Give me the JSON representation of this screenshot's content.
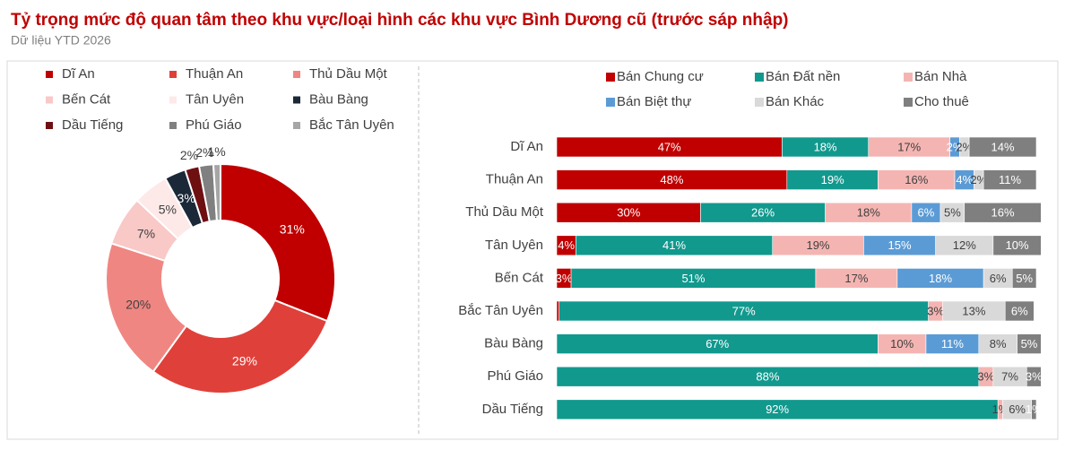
{
  "title": "Tỷ trọng mức độ quan tâm theo khu vực/loại hình các khu vực Bình Dương cũ (trước sáp nhập)",
  "subtitle": "Dữ liệu YTD 2026",
  "chart_data": [
    {
      "type": "donut",
      "categories": [
        "Dĩ An",
        "Thuận An",
        "Thủ Dầu Một",
        "Bến Cát",
        "Tân Uyên",
        "Bàu Bàng",
        "Dầu Tiếng",
        "Phú Giáo",
        "Bắc Tân Uyên"
      ],
      "values": [
        31,
        29,
        20,
        7,
        5,
        3,
        2,
        2,
        1
      ],
      "value_labels": [
        "31%",
        "29%",
        "20%",
        "7%",
        "5%",
        "3%",
        "2%",
        "2%",
        "1%"
      ],
      "colors": [
        "#c00000",
        "#e0403a",
        "#f08682",
        "#f8c9c7",
        "#fde9e8",
        "#1b2838",
        "#6e0f12",
        "#808080",
        "#a6a6a6"
      ]
    },
    {
      "type": "bar",
      "orientation": "horizontal",
      "stacked": true,
      "categories": [
        "Dĩ An",
        "Thuận An",
        "Thủ Dầu Một",
        "Tân Uyên",
        "Bến Cát",
        "Bắc Tân Uyên",
        "Bàu Bàng",
        "Phú Giáo",
        "Dầu Tiếng"
      ],
      "xlim": [
        0,
        100
      ],
      "series": [
        {
          "name": "Bán Chung cư",
          "color": "#c00000",
          "values": [
            47,
            48,
            30,
            4,
            3,
            0.5,
            0,
            0,
            0
          ],
          "value_labels": [
            "47%",
            "48%",
            "30%",
            "4%",
            "3%",
            null,
            null,
            null,
            null
          ]
        },
        {
          "name": "Bán Đất nền",
          "color": "#12998e",
          "values": [
            18,
            19,
            26,
            41,
            51,
            77,
            67,
            88,
            92
          ],
          "value_labels": [
            "18%",
            "19%",
            "26%",
            "41%",
            "51%",
            "77%",
            "67%",
            "88%",
            "92%"
          ]
        },
        {
          "name": "Bán Nhà",
          "color": "#f4b5b2",
          "values": [
            17,
            16,
            18,
            19,
            17,
            3,
            10,
            3,
            1
          ],
          "value_labels": [
            "17%",
            "16%",
            "18%",
            "19%",
            "17%",
            "3%",
            "10%",
            "3%",
            "1%"
          ]
        },
        {
          "name": "Bán Biệt thự",
          "color": "#5b9bd5",
          "values": [
            2,
            4,
            6,
            15,
            18,
            0,
            11,
            0,
            0
          ],
          "value_labels": [
            "2%",
            "4%",
            "6%",
            "15%",
            "18%",
            null,
            "11%",
            null,
            null
          ]
        },
        {
          "name": "Bán Khác",
          "color": "#d9d9d9",
          "values": [
            2,
            2,
            5,
            12,
            6,
            13,
            8,
            7,
            6
          ],
          "value_labels": [
            "2%",
            "2%",
            "5%",
            "12%",
            "6%",
            "13%",
            "8%",
            "7%",
            "6%"
          ]
        },
        {
          "name": "Cho thuê",
          "color": "#7f7f7f",
          "values": [
            14,
            11,
            16,
            10,
            5,
            6,
            5,
            3,
            1
          ],
          "value_labels": [
            "14%",
            "11%",
            "16%",
            "10%",
            "5%",
            "6%",
            "5%",
            "3%",
            "1%"
          ]
        }
      ]
    }
  ]
}
